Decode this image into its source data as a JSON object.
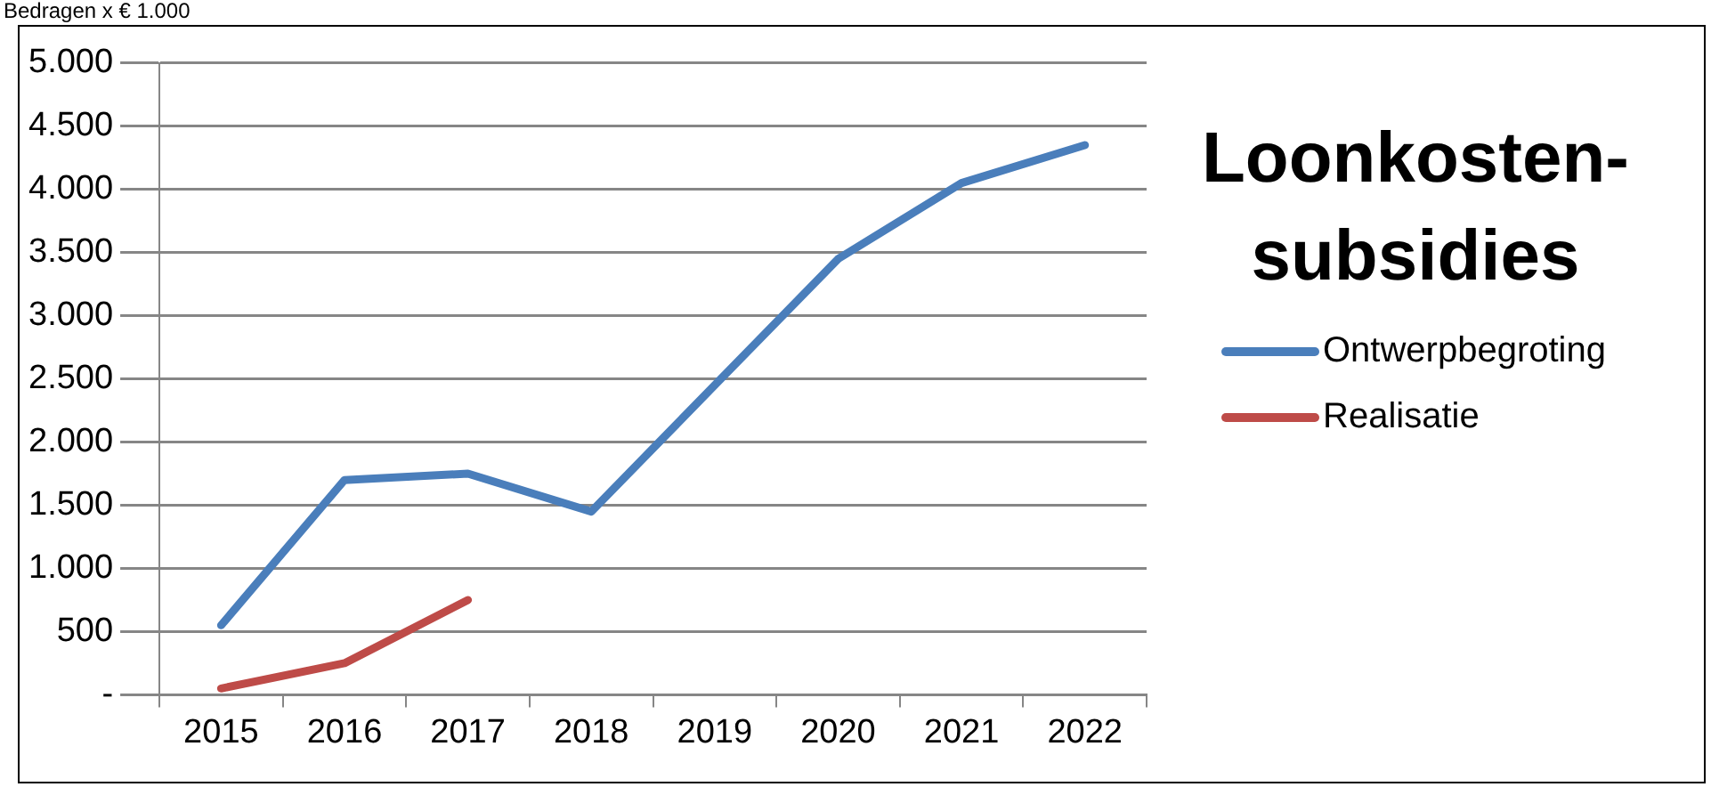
{
  "chart_data": {
    "type": "line",
    "title": "Loonkosten-subsidies",
    "annotations": [
      "Bedragen x € 1.000"
    ],
    "categories": [
      "2015",
      "2016",
      "2017",
      "2018",
      "2019",
      "2020",
      "2021",
      "2022"
    ],
    "series": [
      {
        "name": "Ontwerpbegroting",
        "color": "#4a7ebb",
        "values": [
          550,
          1700,
          1750,
          1450,
          2450,
          3450,
          4050,
          4350
        ]
      },
      {
        "name": "Realisatie",
        "color": "#be4b48",
        "values": [
          50,
          250,
          750,
          null,
          null,
          null,
          null,
          null
        ]
      }
    ],
    "ylim": [
      0,
      5000
    ],
    "yticks": [
      {
        "value": 0,
        "label": "-"
      },
      {
        "value": 500,
        "label": "500"
      },
      {
        "value": 1000,
        "label": "1.000"
      },
      {
        "value": 1500,
        "label": "1.500"
      },
      {
        "value": 2000,
        "label": "2.000"
      },
      {
        "value": 2500,
        "label": "2.500"
      },
      {
        "value": 3000,
        "label": "3.000"
      },
      {
        "value": 3500,
        "label": "3.500"
      },
      {
        "value": 4000,
        "label": "4.000"
      },
      {
        "value": 4500,
        "label": "4.500"
      },
      {
        "value": 5000,
        "label": "5.000"
      }
    ],
    "grid": "y",
    "legend": "right",
    "marker": "none",
    "line_style": "solid"
  }
}
